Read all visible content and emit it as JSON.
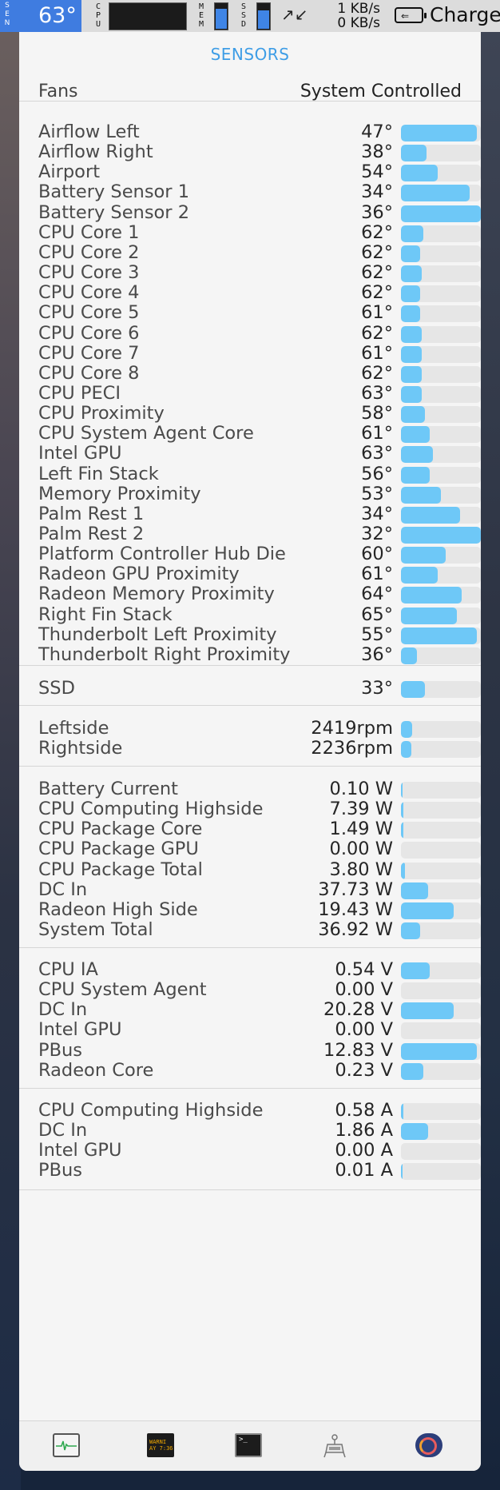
{
  "menubar": {
    "sen_label": "SEN",
    "sen_temp": "63°",
    "cpu_label": "CPU",
    "mem_label": "MEM",
    "ssd_label": "SSD",
    "mem_level": 0.75,
    "ssd_level": 0.7,
    "net_up": "1 KB/s",
    "net_down": "0 KB/s",
    "battery_status": "Charge"
  },
  "panel": {
    "title": "SENSORS",
    "fans_label": "Fans",
    "fans_mode": "System Controlled"
  },
  "temperature_sensors": [
    {
      "name": "Airflow Left",
      "value": "47°",
      "level": 0.95
    },
    {
      "name": "Airflow Right",
      "value": "38°",
      "level": 0.32
    },
    {
      "name": "Airport",
      "value": "54°",
      "level": 0.46
    },
    {
      "name": "Battery Sensor 1",
      "value": "34°",
      "level": 0.86
    },
    {
      "name": "Battery Sensor 2",
      "value": "36°",
      "level": 1.0
    },
    {
      "name": "CPU Core 1",
      "value": "62°",
      "level": 0.28
    },
    {
      "name": "CPU Core 2",
      "value": "62°",
      "level": 0.24
    },
    {
      "name": "CPU Core 3",
      "value": "62°",
      "level": 0.26
    },
    {
      "name": "CPU Core 4",
      "value": "62°",
      "level": 0.24
    },
    {
      "name": "CPU Core 5",
      "value": "61°",
      "level": 0.24
    },
    {
      "name": "CPU Core 6",
      "value": "62°",
      "level": 0.26
    },
    {
      "name": "CPU Core 7",
      "value": "61°",
      "level": 0.26
    },
    {
      "name": "CPU Core 8",
      "value": "62°",
      "level": 0.26
    },
    {
      "name": "CPU PECI",
      "value": "63°",
      "level": 0.26
    },
    {
      "name": "CPU Proximity",
      "value": "58°",
      "level": 0.3
    },
    {
      "name": "CPU System Agent Core",
      "value": "61°",
      "level": 0.36
    },
    {
      "name": "Intel GPU",
      "value": "63°",
      "level": 0.4
    },
    {
      "name": "Left Fin Stack",
      "value": "56°",
      "level": 0.36
    },
    {
      "name": "Memory Proximity",
      "value": "53°",
      "level": 0.5
    },
    {
      "name": "Palm Rest 1",
      "value": "34°",
      "level": 0.74
    },
    {
      "name": "Palm Rest 2",
      "value": "32°",
      "level": 1.0
    },
    {
      "name": "Platform Controller Hub Die",
      "value": "60°",
      "level": 0.56
    },
    {
      "name": "Radeon GPU Proximity",
      "value": "61°",
      "level": 0.46
    },
    {
      "name": "Radeon Memory Proximity",
      "value": "64°",
      "level": 0.76
    },
    {
      "name": "Right Fin Stack",
      "value": "65°",
      "level": 0.7
    },
    {
      "name": "Thunderbolt Left Proximity",
      "value": "55°",
      "level": 0.95
    },
    {
      "name": "Thunderbolt Right Proximity",
      "value": "36°",
      "level": 0.2
    }
  ],
  "ssd_sensors": [
    {
      "name": "SSD",
      "value": "33°",
      "level": 0.3
    }
  ],
  "fan_sensors": [
    {
      "name": "Leftside",
      "value": "2419rpm",
      "level": 0.14
    },
    {
      "name": "Rightside",
      "value": "2236rpm",
      "level": 0.13
    }
  ],
  "power_sensors": [
    {
      "name": "Battery Current",
      "value": "0.10 W",
      "level": 0.02
    },
    {
      "name": "CPU Computing Highside",
      "value": "7.39 W",
      "level": 0.03
    },
    {
      "name": "CPU Package Core",
      "value": "1.49 W",
      "level": 0.03
    },
    {
      "name": "CPU Package GPU",
      "value": "0.00 W",
      "level": 0.0
    },
    {
      "name": "CPU Package Total",
      "value": "3.80 W",
      "level": 0.05
    },
    {
      "name": "DC In",
      "value": "37.73 W",
      "level": 0.34
    },
    {
      "name": "Radeon High Side",
      "value": "19.43 W",
      "level": 0.66
    },
    {
      "name": "System Total",
      "value": "36.92 W",
      "level": 0.24
    }
  ],
  "voltage_sensors": [
    {
      "name": "CPU IA",
      "value": "0.54 V",
      "level": 0.36
    },
    {
      "name": "CPU System Agent",
      "value": "0.00 V",
      "level": 0.0
    },
    {
      "name": "DC In",
      "value": "20.28 V",
      "level": 0.66
    },
    {
      "name": "Intel GPU",
      "value": "0.00 V",
      "level": 0.0
    },
    {
      "name": "PBus",
      "value": "12.83 V",
      "level": 0.95
    },
    {
      "name": "Radeon Core",
      "value": "0.23 V",
      "level": 0.28
    }
  ],
  "current_sensors": [
    {
      "name": "CPU Computing Highside",
      "value": "0.58 A",
      "level": 0.03
    },
    {
      "name": "DC In",
      "value": "1.86 A",
      "level": 0.34
    },
    {
      "name": "Intel GPU",
      "value": "0.00 A",
      "level": 0.0
    },
    {
      "name": "PBus",
      "value": "0.01 A",
      "level": 0.02
    }
  ],
  "dock": {
    "console_icon_text": "WARNI AY 7:36",
    "terminal_icon_text": ">_",
    "icons": [
      "activity-monitor-icon",
      "console-icon",
      "terminal-icon",
      "system-information-icon",
      "istat-menus-icon"
    ]
  },
  "colors": {
    "accent": "#3e9de6",
    "bar_fill": "#6ec8f7",
    "bar_track": "#e6e6e6",
    "sen_badge": "#3f7ce0"
  }
}
